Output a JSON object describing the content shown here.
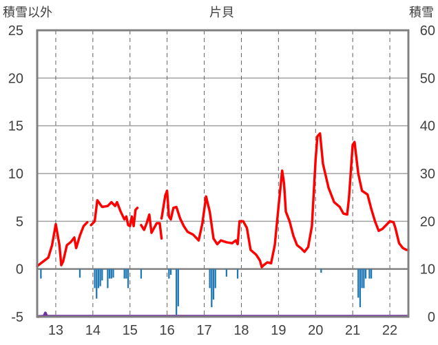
{
  "chart_data": {
    "type": "line",
    "title": "片貝",
    "left_axis_label": "積雪以外",
    "right_axis_label": "積雪",
    "grid": true,
    "x_domain": [
      12.5,
      22.5
    ],
    "y_left_range": [
      -5,
      25
    ],
    "y_right_range": [
      0,
      60
    ],
    "y_left_ticks": [
      "-5",
      "0",
      "5",
      "10",
      "15",
      "20",
      "25"
    ],
    "y_right_ticks": [
      "0",
      "10",
      "20",
      "30",
      "40",
      "50",
      "60"
    ],
    "x_tick_labels": [
      "13",
      "14",
      "15",
      "16",
      "17",
      "18",
      "19",
      "20",
      "21",
      "22"
    ],
    "x_tick_values": [
      13,
      14,
      15,
      16,
      17,
      18,
      19,
      20,
      21,
      22
    ],
    "colors": {
      "temperature": "#ff0000",
      "precipitation": "#1f77b4",
      "snow_depth": "#7030a0",
      "frame": "#808080",
      "grid": "#808080"
    },
    "series": [
      {
        "kind": "line",
        "axis": "left",
        "segments": [
          [
            [
              12.5,
              0.3
            ],
            [
              12.6,
              0.6
            ],
            [
              12.7,
              0.9
            ],
            [
              12.8,
              1.2
            ],
            [
              12.9,
              2.5
            ],
            [
              13.0,
              4.7
            ],
            [
              13.1,
              2.5
            ],
            [
              13.15,
              0.4
            ],
            [
              13.2,
              0.8
            ],
            [
              13.3,
              2.5
            ],
            [
              13.4,
              2.8
            ],
            [
              13.5,
              3.3
            ],
            [
              13.55,
              2.2
            ],
            [
              13.65,
              3.5
            ],
            [
              13.75,
              4.5
            ],
            [
              13.85,
              4.9
            ]
          ],
          [
            [
              13.95,
              4.6
            ],
            [
              14.05,
              5.0
            ],
            [
              14.12,
              7.2
            ],
            [
              14.25,
              6.5
            ],
            [
              14.4,
              6.6
            ],
            [
              14.5,
              7.0
            ],
            [
              14.6,
              6.6
            ],
            [
              14.65,
              7.0
            ],
            [
              14.75,
              6.0
            ],
            [
              14.85,
              5.2
            ],
            [
              14.9,
              5.5
            ],
            [
              14.95,
              4.6
            ],
            [
              15.0,
              4.5
            ],
            [
              15.05,
              5.5
            ],
            [
              15.1,
              4.5
            ],
            [
              15.15,
              6.2
            ],
            [
              15.2,
              6.4
            ]
          ],
          [
            [
              15.3,
              4.6
            ],
            [
              15.38,
              4.1
            ],
            [
              15.45,
              4.8
            ],
            [
              15.52,
              5.7
            ],
            [
              15.58,
              3.8
            ],
            [
              15.65,
              4.3
            ],
            [
              15.72,
              4.8
            ],
            [
              15.8,
              4.8
            ],
            [
              15.85,
              3.2
            ]
          ],
          [
            [
              15.85,
              5.3
            ],
            [
              15.95,
              7.7
            ],
            [
              16.0,
              8.2
            ],
            [
              16.05,
              5.5
            ],
            [
              16.1,
              5.2
            ],
            [
              16.17,
              6.4
            ],
            [
              16.25,
              6.5
            ],
            [
              16.35,
              5.3
            ],
            [
              16.45,
              4.5
            ],
            [
              16.55,
              3.9
            ],
            [
              16.7,
              3.6
            ],
            [
              16.85,
              3.0
            ],
            [
              16.95,
              4.8
            ],
            [
              17.05,
              7.6
            ],
            [
              17.15,
              6.0
            ],
            [
              17.25,
              3.2
            ],
            [
              17.35,
              2.6
            ],
            [
              17.45,
              3.0
            ],
            [
              17.6,
              2.8
            ],
            [
              17.75,
              2.7
            ],
            [
              17.85,
              3.0
            ],
            [
              17.9,
              2.6
            ],
            [
              17.95,
              5.0
            ],
            [
              18.05,
              5.0
            ],
            [
              18.15,
              4.3
            ],
            [
              18.25,
              2.0
            ],
            [
              18.4,
              1.5
            ],
            [
              18.5,
              0.9
            ],
            [
              18.55,
              0.2
            ],
            [
              18.6,
              0.4
            ],
            [
              18.7,
              0.7
            ],
            [
              18.8,
              0.6
            ],
            [
              18.9,
              2.5
            ],
            [
              19.0,
              6.5
            ],
            [
              19.1,
              10.3
            ],
            [
              19.15,
              9.0
            ],
            [
              19.2,
              6.0
            ],
            [
              19.3,
              5.0
            ],
            [
              19.4,
              3.5
            ],
            [
              19.5,
              2.5
            ],
            [
              19.6,
              2.2
            ],
            [
              19.7,
              1.8
            ],
            [
              19.8,
              2.3
            ],
            [
              19.9,
              4.5
            ],
            [
              20.0,
              11.5
            ],
            [
              20.05,
              13.9
            ],
            [
              20.12,
              14.2
            ],
            [
              20.2,
              11.0
            ],
            [
              20.35,
              8.5
            ],
            [
              20.5,
              7.0
            ],
            [
              20.65,
              6.5
            ],
            [
              20.75,
              5.8
            ],
            [
              20.85,
              5.7
            ],
            [
              20.9,
              7.5
            ],
            [
              21.0,
              13.0
            ],
            [
              21.05,
              13.3
            ],
            [
              21.15,
              10.0
            ],
            [
              21.25,
              8.2
            ],
            [
              21.4,
              7.8
            ],
            [
              21.5,
              6.3
            ],
            [
              21.6,
              5.0
            ],
            [
              21.7,
              4.0
            ],
            [
              21.8,
              4.2
            ],
            [
              21.9,
              4.6
            ],
            [
              22.0,
              5.0
            ],
            [
              22.1,
              4.9
            ],
            [
              22.15,
              4.3
            ],
            [
              22.25,
              2.7
            ],
            [
              22.35,
              2.2
            ],
            [
              22.45,
              2.0
            ],
            [
              22.5,
              2.0
            ]
          ]
        ]
      },
      {
        "kind": "bar",
        "axis": "left",
        "bar_width_days": 0.042,
        "points": [
          [
            12.6,
            -1.0
          ],
          [
            13.65,
            -0.9
          ],
          [
            14.05,
            -2.0
          ],
          [
            14.1,
            -3.1
          ],
          [
            14.15,
            -2.0
          ],
          [
            14.2,
            -1.8
          ],
          [
            14.25,
            -1.2
          ],
          [
            14.4,
            -2.0
          ],
          [
            14.45,
            -1.0
          ],
          [
            14.5,
            -1.0
          ],
          [
            14.55,
            -0.9
          ],
          [
            14.85,
            -1.0
          ],
          [
            14.9,
            -1.0
          ],
          [
            14.95,
            -2.0
          ],
          [
            15.3,
            -1.0
          ],
          [
            16.05,
            -1.0
          ],
          [
            16.1,
            -0.6
          ],
          [
            16.25,
            -4.8
          ],
          [
            16.3,
            -3.9
          ],
          [
            17.15,
            -2.0
          ],
          [
            17.2,
            -4.0
          ],
          [
            17.25,
            -3.2
          ],
          [
            17.3,
            -2.0
          ],
          [
            17.6,
            -0.8
          ],
          [
            17.9,
            -1.0
          ],
          [
            20.15,
            -0.4
          ],
          [
            21.15,
            -3.0
          ],
          [
            21.2,
            -4.0
          ],
          [
            21.25,
            -2.0
          ],
          [
            21.3,
            -2.0
          ],
          [
            21.35,
            -1.0
          ],
          [
            21.45,
            -1.0
          ],
          [
            21.5,
            -1.0
          ]
        ]
      },
      {
        "kind": "line",
        "axis": "right",
        "segments": [
          [
            [
              12.5,
              0.05
            ],
            [
              12.68,
              0.1
            ],
            [
              12.72,
              0.8
            ],
            [
              12.76,
              0.1
            ],
            [
              22.5,
              0.1
            ]
          ]
        ]
      }
    ]
  }
}
